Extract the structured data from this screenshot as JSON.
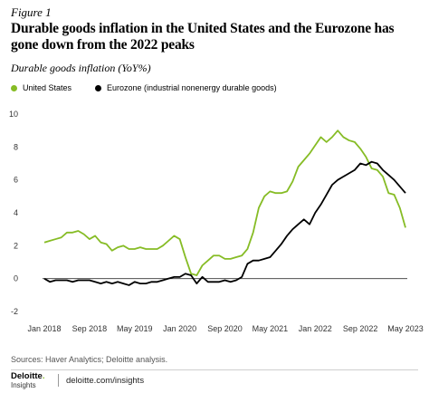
{
  "figure_label": "Figure 1",
  "title": "Durable goods inflation in the United States and the Eurozone has gone down from the 2022 peaks",
  "subtitle": "Durable goods inflation (YoY%)",
  "source": "Sources: Haver Analytics; Deloitte analysis.",
  "brand": {
    "name": "Deloitte",
    "sub": "Insights"
  },
  "footer_url": "deloitte.com/insights",
  "colors": {
    "us": "#86bc25",
    "eurozone": "#000000",
    "zero_line": "#333333"
  },
  "chart_data": {
    "type": "line",
    "title": "Durable goods inflation in the United States and the Eurozone has gone down from the 2022 peaks",
    "ylabel": "Durable goods inflation (YoY%)",
    "xlabel": "",
    "ylim": [
      -2,
      10
    ],
    "yticks": [
      -2,
      0,
      2,
      4,
      6,
      8,
      10
    ],
    "x_start": "2018-01",
    "x_tick_labels": [
      {
        "label": "Jan 2018",
        "month_index": 0
      },
      {
        "label": "Sep 2018",
        "month_index": 8
      },
      {
        "label": "May 2019",
        "month_index": 16
      },
      {
        "label": "Jan 2020",
        "month_index": 24
      },
      {
        "label": "Sep 2020",
        "month_index": 32
      },
      {
        "label": "May 2021",
        "month_index": 40
      },
      {
        "label": "Jan 2022",
        "month_index": 48
      },
      {
        "label": "Sep 2022",
        "month_index": 56
      },
      {
        "label": "May 2023",
        "month_index": 64
      }
    ],
    "grid": false,
    "legend_position": "top-left",
    "series": [
      {
        "name": "United States",
        "color": "#86bc25",
        "values": [
          2.2,
          2.3,
          2.4,
          2.5,
          2.8,
          2.8,
          2.9,
          2.7,
          2.4,
          2.6,
          2.2,
          2.1,
          1.7,
          1.9,
          2.0,
          1.8,
          1.8,
          1.9,
          1.8,
          1.8,
          1.8,
          2.0,
          2.3,
          2.6,
          2.4,
          1.3,
          0.3,
          0.2,
          0.8,
          1.1,
          1.4,
          1.4,
          1.2,
          1.2,
          1.3,
          1.4,
          1.8,
          2.8,
          4.3,
          5.0,
          5.3,
          5.2,
          5.2,
          5.3,
          5.9,
          6.8,
          7.2,
          7.6,
          8.1,
          8.6,
          8.3,
          8.6,
          9.0,
          8.6,
          8.4,
          8.3,
          7.9,
          7.4,
          6.7,
          6.6,
          6.2,
          5.2,
          5.1,
          4.3,
          3.1
        ]
      },
      {
        "name": "Eurozone (industrial nonenergy durable goods)",
        "color": "#000000",
        "values": [
          0.0,
          -0.2,
          -0.1,
          -0.1,
          -0.1,
          -0.2,
          -0.1,
          -0.1,
          -0.1,
          -0.2,
          -0.3,
          -0.2,
          -0.3,
          -0.2,
          -0.3,
          -0.4,
          -0.2,
          -0.3,
          -0.3,
          -0.2,
          -0.2,
          -0.1,
          0.0,
          0.1,
          0.1,
          0.3,
          0.2,
          -0.3,
          0.1,
          -0.2,
          -0.2,
          -0.2,
          -0.1,
          -0.2,
          -0.1,
          0.1,
          0.9,
          1.1,
          1.1,
          1.2,
          1.3,
          1.7,
          2.1,
          2.6,
          3.0,
          3.3,
          3.6,
          3.3,
          4.0,
          4.5,
          5.1,
          5.7,
          6.0,
          6.2,
          6.4,
          6.6,
          7.0,
          6.9,
          7.1,
          7.0,
          6.6,
          6.3,
          6.0,
          5.6,
          5.2
        ]
      }
    ]
  }
}
